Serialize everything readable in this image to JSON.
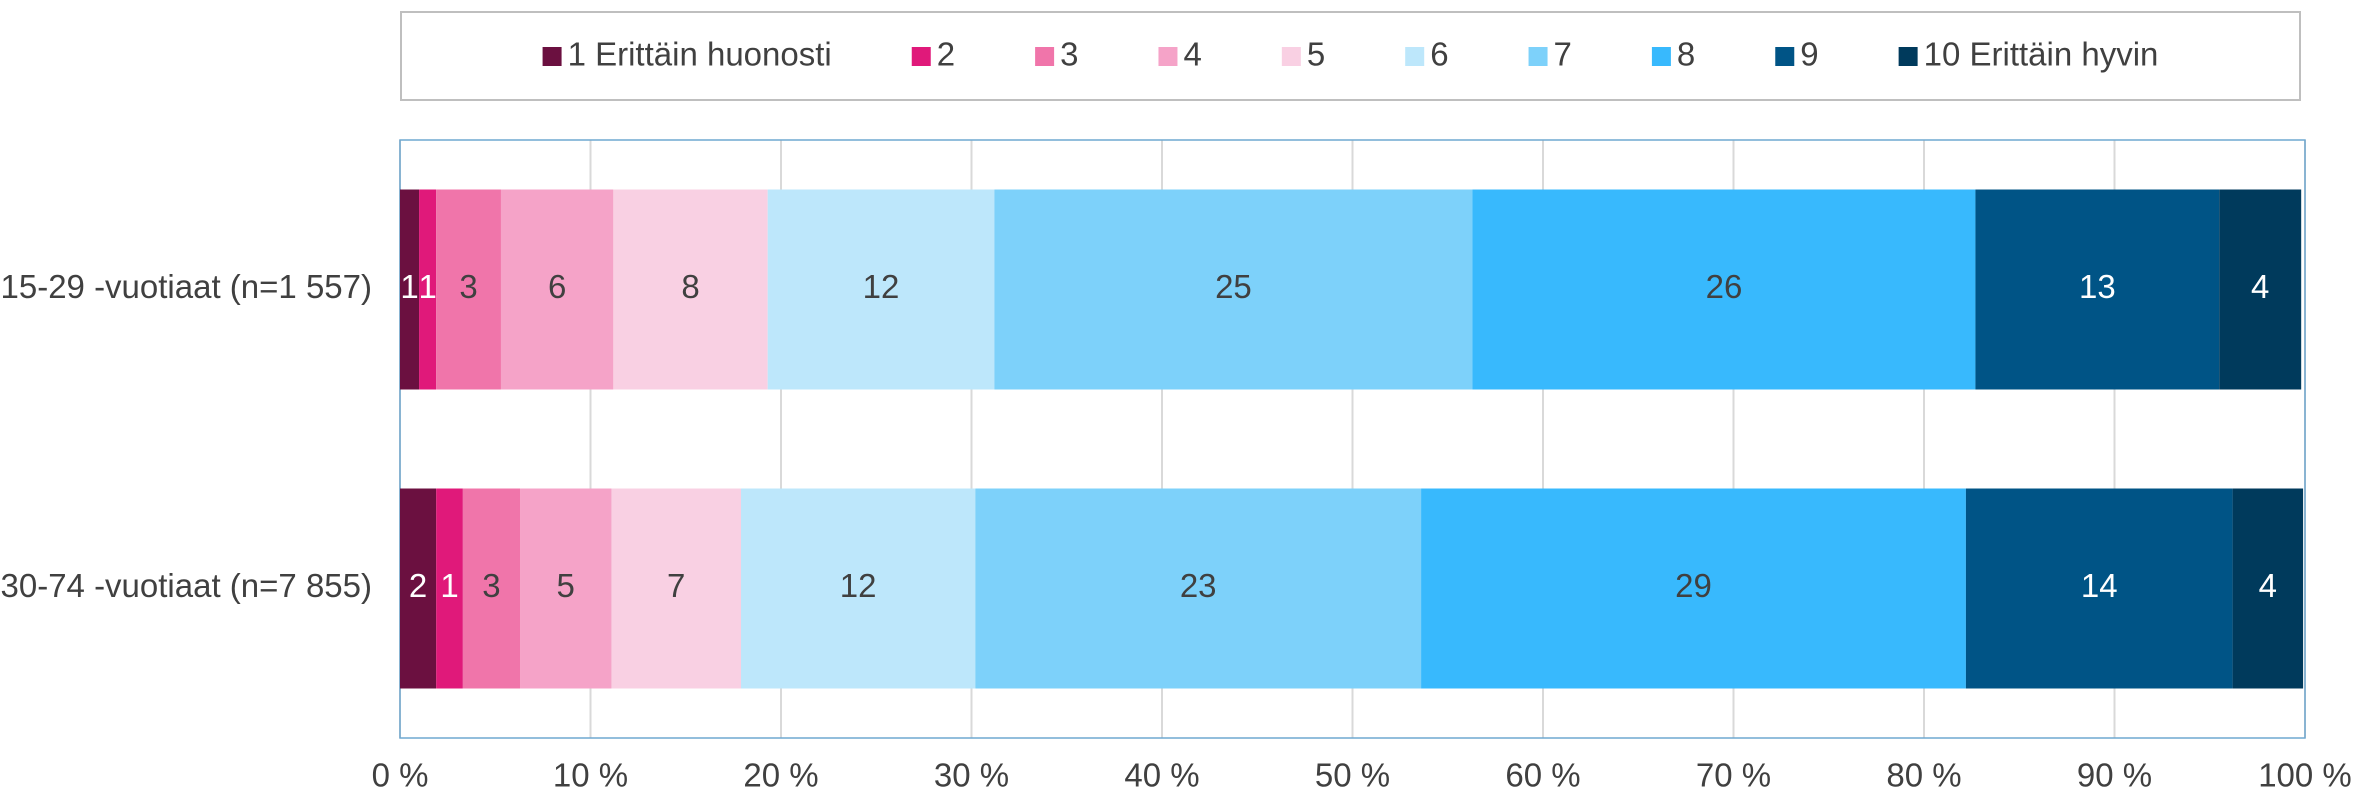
{
  "chart_data": {
    "type": "stacked-bar-horizontal",
    "categories": [
      "15-29 -vuotiaat (n=1 557)",
      "30-74 -vuotiaat (n=7 855)"
    ],
    "series": [
      {
        "name": "1 Erittäin huonosti",
        "color": "#6b1040",
        "values": [
          1.0,
          1.9
        ],
        "value_labels": [
          "1",
          "2"
        ]
      },
      {
        "name": "2",
        "color": "#e0197a",
        "values": [
          0.9,
          1.4
        ],
        "value_labels": [
          "1",
          "1"
        ]
      },
      {
        "name": "3",
        "color": "#f075aa",
        "values": [
          3.4,
          3.0
        ],
        "value_labels": [
          "3",
          "3"
        ]
      },
      {
        "name": "4",
        "color": "#f5a3c8",
        "values": [
          5.9,
          4.8
        ],
        "value_labels": [
          "6",
          "5"
        ]
      },
      {
        "name": "5",
        "color": "#f9d0e3",
        "values": [
          8.1,
          6.8
        ],
        "value_labels": [
          "8",
          "7"
        ]
      },
      {
        "name": "6",
        "color": "#bde7fb",
        "values": [
          11.9,
          12.3
        ],
        "value_labels": [
          "12",
          "12"
        ]
      },
      {
        "name": "7",
        "color": "#7dd1fa",
        "values": [
          25.1,
          23.4
        ],
        "value_labels": [
          "25",
          "23"
        ]
      },
      {
        "name": "8",
        "color": "#38b9fd",
        "values": [
          26.4,
          28.6
        ],
        "value_labels": [
          "26",
          "29"
        ]
      },
      {
        "name": "9",
        "color": "#005486",
        "values": [
          12.8,
          14.0
        ],
        "value_labels": [
          "13",
          "14"
        ]
      },
      {
        "name": "10 Erittäin hyvin",
        "color": "#003a5c",
        "values": [
          4.3,
          3.7
        ],
        "value_labels": [
          "4",
          "4"
        ]
      }
    ],
    "xlim": [
      0,
      100
    ],
    "xticks": [
      {
        "value": 0,
        "label": "0 %"
      },
      {
        "value": 10,
        "label": "10 %"
      },
      {
        "value": 20,
        "label": "20 %"
      },
      {
        "value": 30,
        "label": "30 %"
      },
      {
        "value": 40,
        "label": "40 %"
      },
      {
        "value": 50,
        "label": "50 %"
      },
      {
        "value": 60,
        "label": "60 %"
      },
      {
        "value": 70,
        "label": "70 %"
      },
      {
        "value": 80,
        "label": "80 %"
      },
      {
        "value": 90,
        "label": "90 %"
      },
      {
        "value": 100,
        "label": "100 %"
      }
    ],
    "grid": true,
    "legend": "top"
  }
}
